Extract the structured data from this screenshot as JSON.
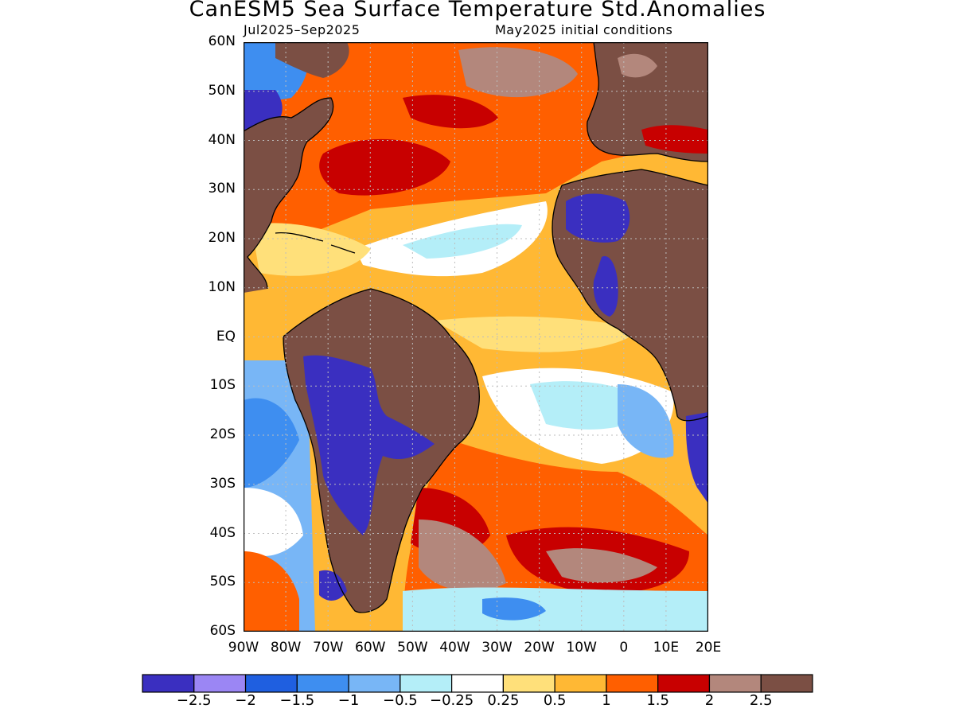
{
  "title": "CanESM5 Sea Surface Temperature Std.Anomalies",
  "subtitle_left": "Jul2025–Sep2025",
  "subtitle_right": "May2025 initial conditions",
  "lat_labels": [
    "60N",
    "50N",
    "40N",
    "30N",
    "20N",
    "10N",
    "EQ",
    "10S",
    "20S",
    "30S",
    "40S",
    "50S",
    "60S"
  ],
  "lon_labels": [
    "90W",
    "80W",
    "70W",
    "60W",
    "50W",
    "40W",
    "30W",
    "20W",
    "10W",
    "0",
    "10E",
    "20E"
  ],
  "colorbar": {
    "colors": [
      "#3a2fc0",
      "#9b86f4",
      "#1f5fe0",
      "#3e8ef0",
      "#78b6f6",
      "#b4eef8",
      "#ffffff",
      "#ffe07a",
      "#ffb834",
      "#ff5f00",
      "#c80000",
      "#b3877c",
      "#7b4f44"
    ],
    "labels": [
      "−2.5",
      "−2",
      "−1.5",
      "−1",
      "−0.5",
      "−0.25",
      "0.25",
      "0.5",
      "1",
      "1.5",
      "2",
      "2.5"
    ]
  },
  "map_colors": {
    "land": "#7b4f44",
    "coast": "#000000",
    "grid": "#bdbdbd"
  }
}
